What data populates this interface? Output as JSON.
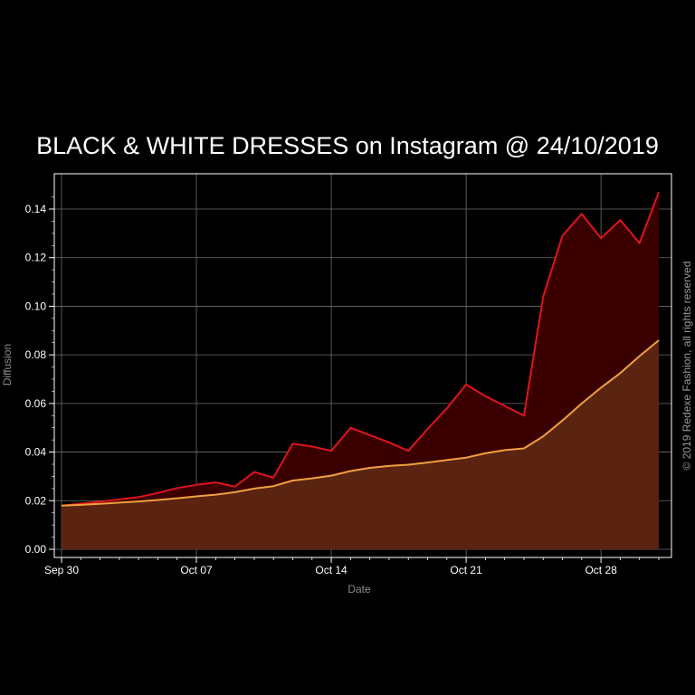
{
  "chart_data": {
    "type": "area",
    "title": "BLACK & WHITE DRESSES on Instagram @ 24/10/2019",
    "xlabel": "Date",
    "ylabel": "Diffusion",
    "x_ticks": [
      "Sep 30",
      "Oct 07",
      "Oct 14",
      "Oct 21",
      "Oct 28"
    ],
    "y_ticks": [
      "0.00",
      "0.02",
      "0.04",
      "0.06",
      "0.08",
      "0.10",
      "0.12",
      "0.14"
    ],
    "ylim": [
      0,
      0.148
    ],
    "xlim": [
      "2019-09-30",
      "2019-10-31"
    ],
    "grid": true,
    "x": [
      "2019-09-30",
      "2019-10-01",
      "2019-10-02",
      "2019-10-03",
      "2019-10-04",
      "2019-10-05",
      "2019-10-06",
      "2019-10-07",
      "2019-10-08",
      "2019-10-09",
      "2019-10-10",
      "2019-10-11",
      "2019-10-12",
      "2019-10-13",
      "2019-10-14",
      "2019-10-15",
      "2019-10-16",
      "2019-10-17",
      "2019-10-18",
      "2019-10-19",
      "2019-10-20",
      "2019-10-21",
      "2019-10-22",
      "2019-10-23",
      "2019-10-24",
      "2019-10-25",
      "2019-10-26",
      "2019-10-27",
      "2019-10-28",
      "2019-10-29",
      "2019-10-30",
      "2019-10-31"
    ],
    "series": [
      {
        "color": "#e0141c",
        "fill": "#3a0000",
        "values": [
          0.018,
          0.0188,
          0.0196,
          0.0205,
          0.0215,
          0.0232,
          0.0252,
          0.0265,
          0.0275,
          0.0258,
          0.0318,
          0.0295,
          0.0435,
          0.0423,
          0.0405,
          0.05,
          0.047,
          0.044,
          0.0405,
          0.0495,
          0.058,
          0.0678,
          0.063,
          0.059,
          0.055,
          0.104,
          0.129,
          0.138,
          0.128,
          0.1355,
          0.126,
          0.147
        ]
      },
      {
        "color": "#f0a040",
        "fill": "#5a2410",
        "values": [
          0.018,
          0.0183,
          0.0187,
          0.0192,
          0.0197,
          0.0203,
          0.021,
          0.0218,
          0.0225,
          0.0235,
          0.025,
          0.026,
          0.0283,
          0.0292,
          0.0303,
          0.0322,
          0.0335,
          0.0343,
          0.0348,
          0.0357,
          0.0367,
          0.0377,
          0.0395,
          0.0408,
          0.0415,
          0.0465,
          0.053,
          0.06,
          0.0665,
          0.0725,
          0.0795,
          0.086
        ]
      }
    ]
  },
  "copyright": "© 2019 Redexe Fashion, all rights reserved"
}
